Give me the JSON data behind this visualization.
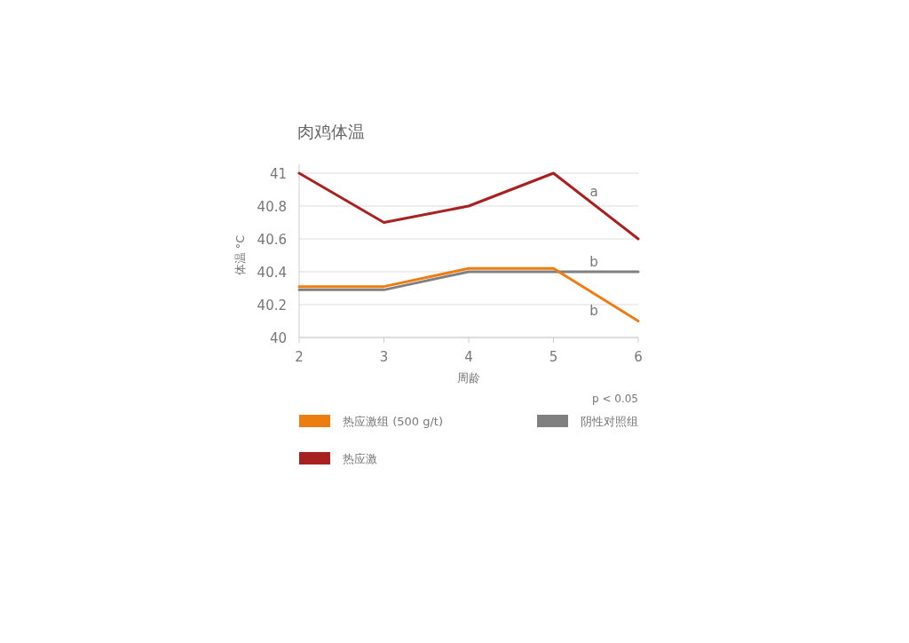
{
  "chart_data": {
    "type": "line",
    "title": "肉鸡体温",
    "xlabel": "周龄",
    "ylabel": "体温 °C",
    "x": [
      2,
      3,
      4,
      5,
      6
    ],
    "series": [
      {
        "name": "热应激组 (500 g/t)",
        "color": "#ee7d11",
        "values": [
          40.31,
          40.31,
          40.42,
          40.42,
          40.1
        ]
      },
      {
        "name": "阴性对照组",
        "color": "#808080",
        "values": [
          40.29,
          40.29,
          40.4,
          40.4,
          40.4
        ]
      },
      {
        "name": "热应激",
        "color": "#a8201f",
        "values": [
          41,
          40.7,
          40.8,
          41,
          40.6
        ]
      }
    ],
    "xlim": [
      2,
      6
    ],
    "xticks": [
      2,
      3,
      4,
      5,
      6
    ],
    "ylim": [
      40,
      41
    ],
    "yticks": [
      40,
      40.2,
      40.4,
      40.6,
      40.8,
      41
    ],
    "grid": "y",
    "legend": "bottom",
    "marker": "none",
    "line_style": "solid",
    "annotations": [
      "a",
      "b",
      "b",
      "p < 0.05"
    ]
  }
}
